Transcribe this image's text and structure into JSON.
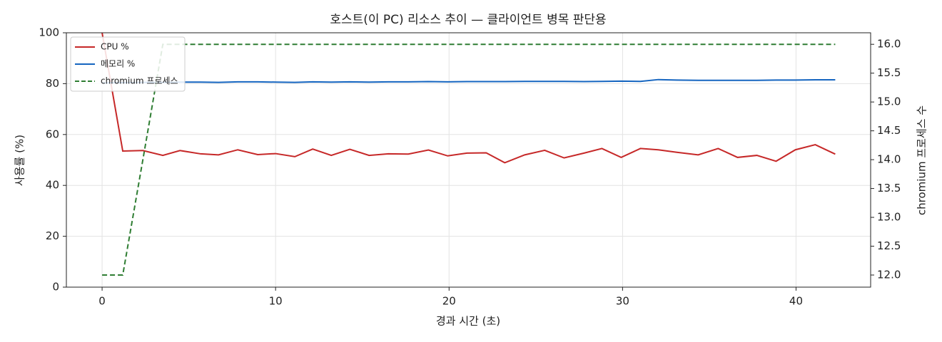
{
  "chart_data": {
    "type": "line",
    "title": "호스트(이 PC) 리소스 추이 — 클라이언트 병목 판단용",
    "xlabel": "경과 시간 (초)",
    "ylabel": "사용률 (%)",
    "y2label": "chromium 프로세스 수",
    "x": [
      0,
      1.19,
      2.35,
      3.5,
      4.49,
      5.68,
      6.71,
      7.82,
      8.97,
      10,
      11.11,
      12.14,
      13.21,
      14.28,
      15.39,
      16.5,
      17.65,
      18.81,
      19.92,
      21.03,
      22.14,
      23.21,
      24.36,
      25.51,
      26.63,
      27.78,
      28.81,
      29.92,
      31.03,
      32.06,
      33.13,
      34.36,
      35.51,
      36.63,
      37.74,
      38.85,
      39.96,
      41.11,
      42.26
    ],
    "series": [
      {
        "name": "CPU %",
        "color": "#c62828",
        "linestyle": "solid",
        "axis": "y",
        "values": [
          100,
          53.5,
          53.7,
          51.8,
          53.7,
          52.4,
          52,
          54,
          52.1,
          52.5,
          51.3,
          54.3,
          51.8,
          54.2,
          51.8,
          52.4,
          52.3,
          53.9,
          51.6,
          52.7,
          52.8,
          48.9,
          52,
          53.8,
          50.8,
          52.7,
          54.5,
          51,
          54.5,
          54,
          53,
          52,
          54.5,
          51,
          51.8,
          49.5,
          54,
          56,
          52.3
        ]
      },
      {
        "name": "메모리 %",
        "color": "#1565c0",
        "linestyle": "solid",
        "axis": "y",
        "values": [
          80.3,
          80.4,
          80.5,
          80.5,
          80.6,
          80.6,
          80.5,
          80.7,
          80.7,
          80.6,
          80.5,
          80.7,
          80.6,
          80.7,
          80.6,
          80.7,
          80.7,
          80.8,
          80.7,
          80.8,
          80.8,
          80.8,
          80.9,
          80.9,
          80.9,
          80.8,
          80.9,
          81,
          80.9,
          81.6,
          81.4,
          81.3,
          81.3,
          81.3,
          81.3,
          81.4,
          81.4,
          81.5,
          81.5
        ]
      },
      {
        "name": "chromium 프로세스",
        "color": "#2e7d32",
        "linestyle": "dashed",
        "axis": "y2",
        "values": [
          12,
          12,
          14,
          16,
          16,
          16,
          16,
          16,
          16,
          16,
          16,
          16,
          16,
          16,
          16,
          16,
          16,
          16,
          16,
          16,
          16,
          16,
          16,
          16,
          16,
          16,
          16,
          16,
          16,
          16,
          16,
          16,
          16,
          16,
          16,
          16,
          16,
          16,
          16
        ]
      }
    ],
    "xlim": [
      -2.06,
      44.3
    ],
    "xticks": [
      0,
      10,
      20,
      30,
      40
    ],
    "ylim": [
      0,
      100
    ],
    "yticks": [
      0,
      20,
      40,
      60,
      80,
      100
    ],
    "y2lim": [
      11.79,
      16.2
    ],
    "y2ticks": [
      {
        "value": 12,
        "label": "12.0"
      },
      {
        "value": 12.5,
        "label": "12.5"
      },
      {
        "value": 13,
        "label": "13.0"
      },
      {
        "value": 13.5,
        "label": "13.5"
      },
      {
        "value": 14,
        "label": "14.0"
      },
      {
        "value": 14.5,
        "label": "14.5"
      },
      {
        "value": 15,
        "label": "15.0"
      },
      {
        "value": 15.5,
        "label": "15.5"
      },
      {
        "value": 16,
        "label": "16.0"
      }
    ],
    "grid": true,
    "legend": "upper left"
  }
}
